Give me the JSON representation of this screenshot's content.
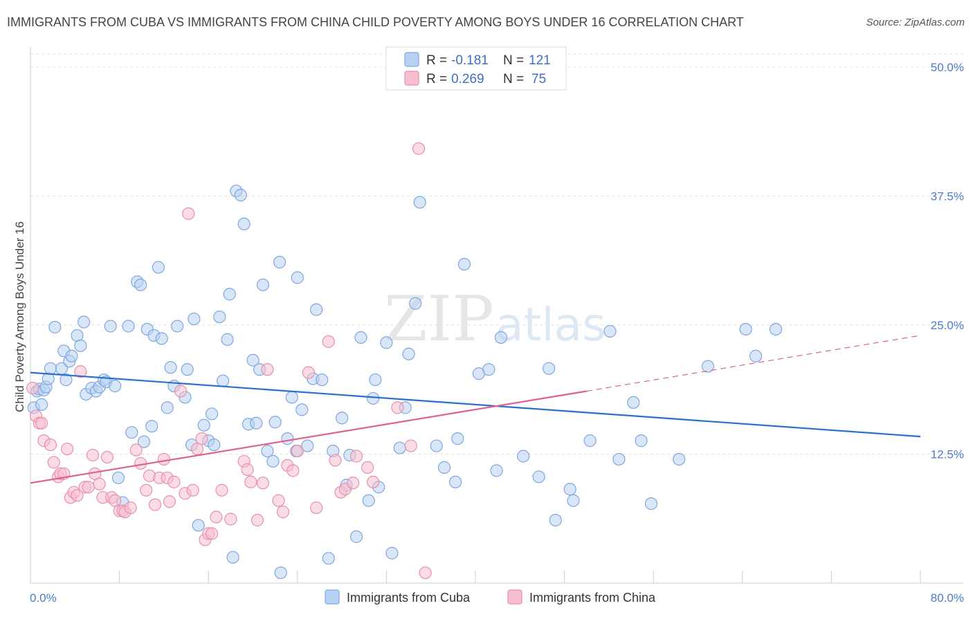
{
  "header": {
    "title": "IMMIGRANTS FROM CUBA VS IMMIGRANTS FROM CHINA CHILD POVERTY AMONG BOYS UNDER 16 CORRELATION CHART",
    "source": "Source: ZipAtlas.com"
  },
  "watermark": {
    "zip": "ZIP",
    "atlas": "atlas"
  },
  "legend": {
    "r_label": "R =",
    "n_label": "N =",
    "cuba": {
      "r": "-0.181",
      "n": "121"
    },
    "china": {
      "r": "0.269",
      "n": "75"
    }
  },
  "colors": {
    "cuba_fill": "#b8d1f3",
    "cuba_stroke": "#7ea7e0",
    "cuba_line": "#2a6fcb",
    "china_fill": "#f6bfd0",
    "china_stroke": "#e98fab",
    "china_line": "#e0608e",
    "tick_text": "#4a7cc9"
  },
  "chart_data": {
    "type": "scatter",
    "title": "IMMIGRANTS FROM CUBA VS IMMIGRANTS FROM CHINA CHILD POVERTY AMONG BOYS UNDER 16 CORRELATION CHART",
    "xlabel": "",
    "ylabel": "Child Poverty Among Boys Under 16",
    "xlim": [
      0,
      80
    ],
    "ylim": [
      0,
      50
    ],
    "x_tick_labels": [
      "0.0%",
      "80.0%"
    ],
    "y_ticks": [
      12.5,
      25,
      37.5,
      50
    ],
    "y_tick_labels": [
      "12.5%",
      "25.0%",
      "37.5%",
      "50.0%"
    ],
    "grid": true,
    "legend_position": "top-center",
    "series": [
      {
        "name": "Immigrants from Cuba",
        "r": -0.181,
        "n": 121,
        "trend": {
          "x": [
            0,
            80
          ],
          "y": [
            20.4,
            14.2
          ]
        },
        "points": [
          [
            0.3,
            17.0
          ],
          [
            0.6,
            18.6
          ],
          [
            0.8,
            18.8
          ],
          [
            1.0,
            17.3
          ],
          [
            1.2,
            18.7
          ],
          [
            1.4,
            19.0
          ],
          [
            1.6,
            19.8
          ],
          [
            1.8,
            20.8
          ],
          [
            2.2,
            24.8
          ],
          [
            2.8,
            20.8
          ],
          [
            3.0,
            22.5
          ],
          [
            3.2,
            19.7
          ],
          [
            3.5,
            21.5
          ],
          [
            3.7,
            22.0
          ],
          [
            4.2,
            24.0
          ],
          [
            4.5,
            23.0
          ],
          [
            4.8,
            25.3
          ],
          [
            5.0,
            18.3
          ],
          [
            5.5,
            18.9
          ],
          [
            5.9,
            18.6
          ],
          [
            6.2,
            19.0
          ],
          [
            6.6,
            19.7
          ],
          [
            6.8,
            19.5
          ],
          [
            7.2,
            24.9
          ],
          [
            7.6,
            19.1
          ],
          [
            7.9,
            10.2
          ],
          [
            8.3,
            7.8
          ],
          [
            8.8,
            24.9
          ],
          [
            9.1,
            14.6
          ],
          [
            9.6,
            29.2
          ],
          [
            9.9,
            28.9
          ],
          [
            10.2,
            13.7
          ],
          [
            10.5,
            24.6
          ],
          [
            10.9,
            15.2
          ],
          [
            11.1,
            24.0
          ],
          [
            11.5,
            30.6
          ],
          [
            11.8,
            23.7
          ],
          [
            12.3,
            17.0
          ],
          [
            12.6,
            20.9
          ],
          [
            12.9,
            19.1
          ],
          [
            13.2,
            24.9
          ],
          [
            13.9,
            18.0
          ],
          [
            14.1,
            20.7
          ],
          [
            14.5,
            13.4
          ],
          [
            14.7,
            25.6
          ],
          [
            15.1,
            5.6
          ],
          [
            15.6,
            15.3
          ],
          [
            16.0,
            13.8
          ],
          [
            16.3,
            16.4
          ],
          [
            16.5,
            13.4
          ],
          [
            17.0,
            25.8
          ],
          [
            17.3,
            19.6
          ],
          [
            17.7,
            23.6
          ],
          [
            17.9,
            28.0
          ],
          [
            18.2,
            2.5
          ],
          [
            18.5,
            38.0
          ],
          [
            18.9,
            37.6
          ],
          [
            19.2,
            34.8
          ],
          [
            19.6,
            15.4
          ],
          [
            20.0,
            21.6
          ],
          [
            20.3,
            15.5
          ],
          [
            20.6,
            20.7
          ],
          [
            20.9,
            28.9
          ],
          [
            21.3,
            12.8
          ],
          [
            21.8,
            11.8
          ],
          [
            22.0,
            15.6
          ],
          [
            22.4,
            31.1
          ],
          [
            23.1,
            14.0
          ],
          [
            23.5,
            18.0
          ],
          [
            23.9,
            12.8
          ],
          [
            24.0,
            29.6
          ],
          [
            24.4,
            16.8
          ],
          [
            24.9,
            13.3
          ],
          [
            25.4,
            19.8
          ],
          [
            25.7,
            26.5
          ],
          [
            26.2,
            19.7
          ],
          [
            26.8,
            2.4
          ],
          [
            27.2,
            12.8
          ],
          [
            28.0,
            16.0
          ],
          [
            28.4,
            9.5
          ],
          [
            28.7,
            12.4
          ],
          [
            29.3,
            4.5
          ],
          [
            29.7,
            23.8
          ],
          [
            30.4,
            8.0
          ],
          [
            30.8,
            17.9
          ],
          [
            31.0,
            19.7
          ],
          [
            31.3,
            9.3
          ],
          [
            32.0,
            23.3
          ],
          [
            32.5,
            2.9
          ],
          [
            33.2,
            13.1
          ],
          [
            33.7,
            17.0
          ],
          [
            34.0,
            22.2
          ],
          [
            34.6,
            27.1
          ],
          [
            35.0,
            36.9
          ],
          [
            36.5,
            13.3
          ],
          [
            37.2,
            11.2
          ],
          [
            38.2,
            9.8
          ],
          [
            38.4,
            14.0
          ],
          [
            39.0,
            30.9
          ],
          [
            40.3,
            20.3
          ],
          [
            41.2,
            20.7
          ],
          [
            41.9,
            10.9
          ],
          [
            42.3,
            23.8
          ],
          [
            44.3,
            12.3
          ],
          [
            45.7,
            10.3
          ],
          [
            46.6,
            20.8
          ],
          [
            47.2,
            6.1
          ],
          [
            48.5,
            9.1
          ],
          [
            48.8,
            8.0
          ],
          [
            50.3,
            13.8
          ],
          [
            52.1,
            24.4
          ],
          [
            52.9,
            12.0
          ],
          [
            54.2,
            17.5
          ],
          [
            54.9,
            13.8
          ],
          [
            55.8,
            7.7
          ],
          [
            58.3,
            12.0
          ],
          [
            60.9,
            21.0
          ],
          [
            64.3,
            24.6
          ],
          [
            65.2,
            22.0
          ],
          [
            67.0,
            24.6
          ],
          [
            22.5,
            1.0
          ]
        ]
      },
      {
        "name": "Immigrants from China",
        "r": 0.269,
        "n": 75,
        "trend": {
          "x": [
            0,
            50
          ],
          "y": [
            9.7,
            18.6
          ]
        },
        "trend_extension": {
          "x": [
            50,
            80
          ],
          "y": [
            18.6,
            24.0
          ]
        },
        "points": [
          [
            0.2,
            18.9
          ],
          [
            0.5,
            16.2
          ],
          [
            0.8,
            15.5
          ],
          [
            1.0,
            15.5
          ],
          [
            1.2,
            13.8
          ],
          [
            1.8,
            13.4
          ],
          [
            2.1,
            11.7
          ],
          [
            2.5,
            10.3
          ],
          [
            2.7,
            10.6
          ],
          [
            3.0,
            10.6
          ],
          [
            3.3,
            13.0
          ],
          [
            3.6,
            8.3
          ],
          [
            3.9,
            8.8
          ],
          [
            4.2,
            8.5
          ],
          [
            4.5,
            20.5
          ],
          [
            4.9,
            9.3
          ],
          [
            5.2,
            9.3
          ],
          [
            5.6,
            12.4
          ],
          [
            5.8,
            10.6
          ],
          [
            6.2,
            9.6
          ],
          [
            6.5,
            8.3
          ],
          [
            6.9,
            12.2
          ],
          [
            7.3,
            8.3
          ],
          [
            7.6,
            8.0
          ],
          [
            8.0,
            7.0
          ],
          [
            8.3,
            7.0
          ],
          [
            8.5,
            6.9
          ],
          [
            9.0,
            7.3
          ],
          [
            9.5,
            12.9
          ],
          [
            9.9,
            11.6
          ],
          [
            10.4,
            9.0
          ],
          [
            10.7,
            10.4
          ],
          [
            11.2,
            7.6
          ],
          [
            11.6,
            10.2
          ],
          [
            12.0,
            12.0
          ],
          [
            12.3,
            10.2
          ],
          [
            12.5,
            7.9
          ],
          [
            12.9,
            9.8
          ],
          [
            13.5,
            18.6
          ],
          [
            13.9,
            8.7
          ],
          [
            14.2,
            35.8
          ],
          [
            14.6,
            9.0
          ],
          [
            15.0,
            13.0
          ],
          [
            15.4,
            14.0
          ],
          [
            15.7,
            4.2
          ],
          [
            16.0,
            4.8
          ],
          [
            16.3,
            4.8
          ],
          [
            16.7,
            6.4
          ],
          [
            17.2,
            9.0
          ],
          [
            18.0,
            6.2
          ],
          [
            19.2,
            11.8
          ],
          [
            19.5,
            11.0
          ],
          [
            19.8,
            9.8
          ],
          [
            20.4,
            6.1
          ],
          [
            20.9,
            9.7
          ],
          [
            21.3,
            20.7
          ],
          [
            22.3,
            8.0
          ],
          [
            22.7,
            6.9
          ],
          [
            23.1,
            11.4
          ],
          [
            23.6,
            10.9
          ],
          [
            24.0,
            12.8
          ],
          [
            25.0,
            20.4
          ],
          [
            25.7,
            7.3
          ],
          [
            26.8,
            23.4
          ],
          [
            27.4,
            11.9
          ],
          [
            27.9,
            8.8
          ],
          [
            28.3,
            9.1
          ],
          [
            29.0,
            9.7
          ],
          [
            29.3,
            12.3
          ],
          [
            30.3,
            11.2
          ],
          [
            30.8,
            9.8
          ],
          [
            33.0,
            17.0
          ],
          [
            34.2,
            13.3
          ],
          [
            34.9,
            42.1
          ],
          [
            35.5,
            1.0
          ]
        ]
      }
    ]
  },
  "bottom_legend": {
    "cuba_label": "Immigrants from Cuba",
    "china_label": "Immigrants from China"
  }
}
